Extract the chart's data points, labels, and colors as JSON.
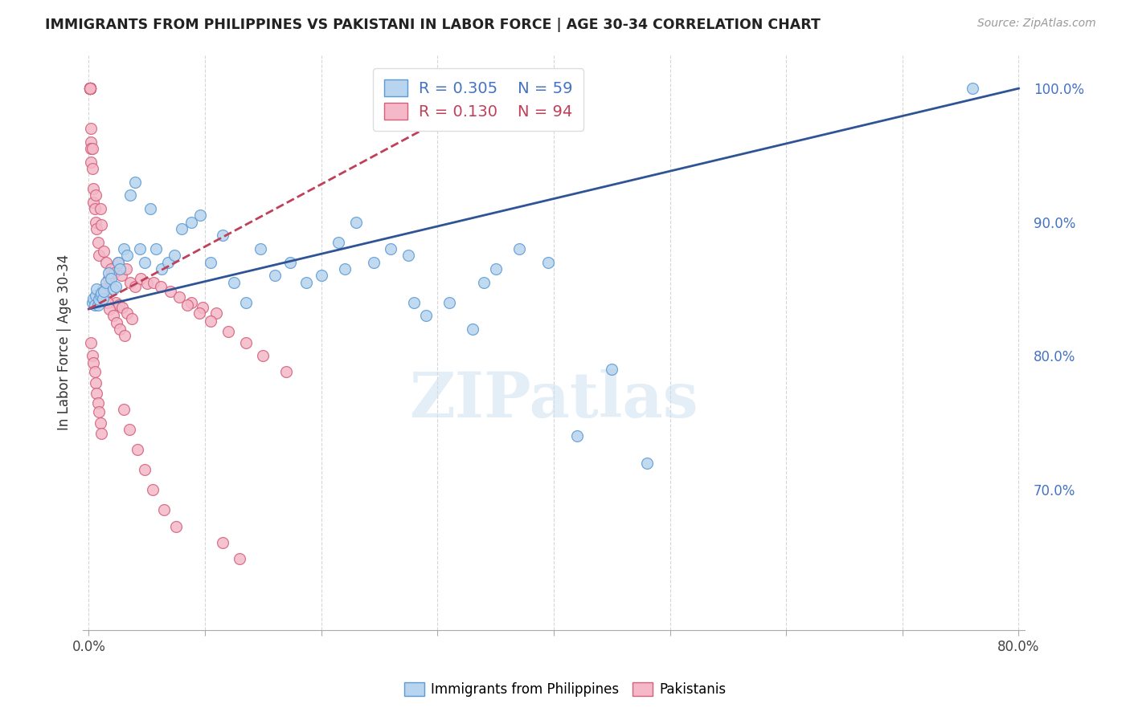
{
  "title": "IMMIGRANTS FROM PHILIPPINES VS PAKISTANI IN LABOR FORCE | AGE 30-34 CORRELATION CHART",
  "source": "Source: ZipAtlas.com",
  "ylabel": "In Labor Force | Age 30-34",
  "xlim": [
    -0.005,
    0.805
  ],
  "ylim": [
    0.595,
    1.025
  ],
  "xticks": [
    0.0,
    0.1,
    0.2,
    0.3,
    0.4,
    0.5,
    0.6,
    0.7,
    0.8
  ],
  "xticklabels": [
    "0.0%",
    "",
    "",
    "",
    "",
    "",
    "",
    "",
    "80.0%"
  ],
  "yticks_right": [
    0.7,
    0.8,
    0.9,
    1.0
  ],
  "yticklabels_right": [
    "70.0%",
    "80.0%",
    "90.0%",
    "100.0%"
  ],
  "blue_color": "#b8d4ee",
  "blue_edge": "#5b9bd5",
  "pink_color": "#f4b8c8",
  "pink_edge": "#d4607a",
  "blue_line_color": "#2f5496",
  "pink_line_color": "#c0405a",
  "legend_R_blue": "0.305",
  "legend_N_blue": "59",
  "legend_R_pink": "0.130",
  "legend_N_pink": "94",
  "blue_x": [
    0.003,
    0.004,
    0.005,
    0.006,
    0.007,
    0.008,
    0.009,
    0.01,
    0.011,
    0.012,
    0.013,
    0.015,
    0.017,
    0.019,
    0.021,
    0.023,
    0.025,
    0.027,
    0.03,
    0.033,
    0.036,
    0.04,
    0.044,
    0.048,
    0.053,
    0.058,
    0.063,
    0.068,
    0.074,
    0.08,
    0.088,
    0.096,
    0.105,
    0.115,
    0.125,
    0.135,
    0.148,
    0.16,
    0.173,
    0.187,
    0.2,
    0.215,
    0.23,
    0.245,
    0.26,
    0.275,
    0.29,
    0.31,
    0.33,
    0.35,
    0.37,
    0.395,
    0.42,
    0.45,
    0.48,
    0.34,
    0.28,
    0.22,
    0.76
  ],
  "blue_y": [
    0.84,
    0.843,
    0.838,
    0.845,
    0.85,
    0.838,
    0.842,
    0.845,
    0.847,
    0.843,
    0.848,
    0.855,
    0.862,
    0.858,
    0.85,
    0.852,
    0.87,
    0.865,
    0.88,
    0.875,
    0.92,
    0.93,
    0.88,
    0.87,
    0.91,
    0.88,
    0.865,
    0.87,
    0.875,
    0.895,
    0.9,
    0.905,
    0.87,
    0.89,
    0.855,
    0.84,
    0.88,
    0.86,
    0.87,
    0.855,
    0.86,
    0.885,
    0.9,
    0.87,
    0.88,
    0.875,
    0.83,
    0.84,
    0.82,
    0.865,
    0.88,
    0.87,
    0.74,
    0.79,
    0.72,
    0.855,
    0.84,
    0.865,
    1.0
  ],
  "pink_x": [
    0.001,
    0.001,
    0.001,
    0.001,
    0.001,
    0.001,
    0.001,
    0.001,
    0.001,
    0.001,
    0.001,
    0.001,
    0.001,
    0.001,
    0.001,
    0.001,
    0.001,
    0.001,
    0.001,
    0.001,
    0.002,
    0.002,
    0.002,
    0.002,
    0.003,
    0.003,
    0.004,
    0.004,
    0.005,
    0.006,
    0.006,
    0.007,
    0.008,
    0.009,
    0.01,
    0.011,
    0.013,
    0.015,
    0.017,
    0.019,
    0.022,
    0.025,
    0.028,
    0.032,
    0.036,
    0.04,
    0.045,
    0.05,
    0.056,
    0.062,
    0.07,
    0.078,
    0.088,
    0.098,
    0.11,
    0.023,
    0.026,
    0.029,
    0.033,
    0.037,
    0.012,
    0.014,
    0.016,
    0.018,
    0.021,
    0.024,
    0.027,
    0.031,
    0.002,
    0.003,
    0.004,
    0.005,
    0.006,
    0.007,
    0.008,
    0.009,
    0.01,
    0.011,
    0.085,
    0.095,
    0.105,
    0.12,
    0.135,
    0.15,
    0.17,
    0.03,
    0.035,
    0.042,
    0.048,
    0.055,
    0.065,
    0.075,
    0.115,
    0.13
  ],
  "pink_y": [
    1.0,
    1.0,
    1.0,
    1.0,
    1.0,
    1.0,
    1.0,
    1.0,
    1.0,
    1.0,
    1.0,
    1.0,
    1.0,
    1.0,
    1.0,
    1.0,
    1.0,
    1.0,
    1.0,
    1.0,
    0.97,
    0.96,
    0.955,
    0.945,
    0.955,
    0.94,
    0.925,
    0.915,
    0.91,
    0.92,
    0.9,
    0.895,
    0.885,
    0.875,
    0.91,
    0.898,
    0.878,
    0.87,
    0.858,
    0.865,
    0.862,
    0.87,
    0.86,
    0.865,
    0.855,
    0.852,
    0.858,
    0.854,
    0.855,
    0.852,
    0.848,
    0.844,
    0.84,
    0.836,
    0.832,
    0.84,
    0.838,
    0.836,
    0.832,
    0.828,
    0.85,
    0.845,
    0.84,
    0.835,
    0.83,
    0.825,
    0.82,
    0.815,
    0.81,
    0.8,
    0.795,
    0.788,
    0.78,
    0.772,
    0.765,
    0.758,
    0.75,
    0.742,
    0.838,
    0.832,
    0.826,
    0.818,
    0.81,
    0.8,
    0.788,
    0.76,
    0.745,
    0.73,
    0.715,
    0.7,
    0.685,
    0.672,
    0.66,
    0.648
  ]
}
